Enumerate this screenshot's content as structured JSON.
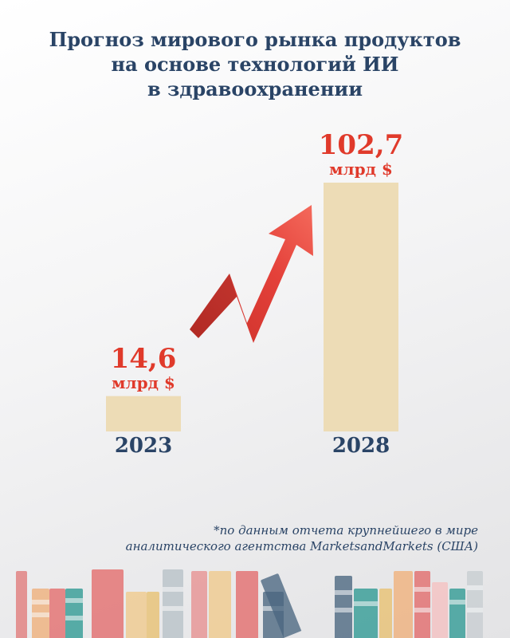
{
  "title": {
    "line1": "Прогноз мирового рынка продуктов",
    "line2": "на основе технологий ИИ",
    "line3": "в здравоохранении"
  },
  "chart_data": {
    "type": "bar",
    "categories": [
      "2023",
      "2028"
    ],
    "values": [
      14.6,
      102.7
    ],
    "value_labels": [
      "14,6",
      "102,7"
    ],
    "unit": "млрд $",
    "title": "Прогноз мирового рынка продуктов на основе технологий ИИ в здравоохранении",
    "xlabel": "",
    "ylabel": "",
    "ylim": [
      0,
      102.7
    ],
    "grid": false,
    "legend": "none"
  },
  "footnote": {
    "line1": "*по данным отчета крупнейшего в мире",
    "line2": "аналитического агентства MarketsandMarkets (США)"
  },
  "colors": {
    "bar": "#eddcb6",
    "value": "#e03a2b",
    "title": "#2a4466",
    "arrow": "#e4413a"
  },
  "icons": {
    "growth_arrow": "red-zigzag-up-arrow",
    "decoration": "books-row"
  }
}
